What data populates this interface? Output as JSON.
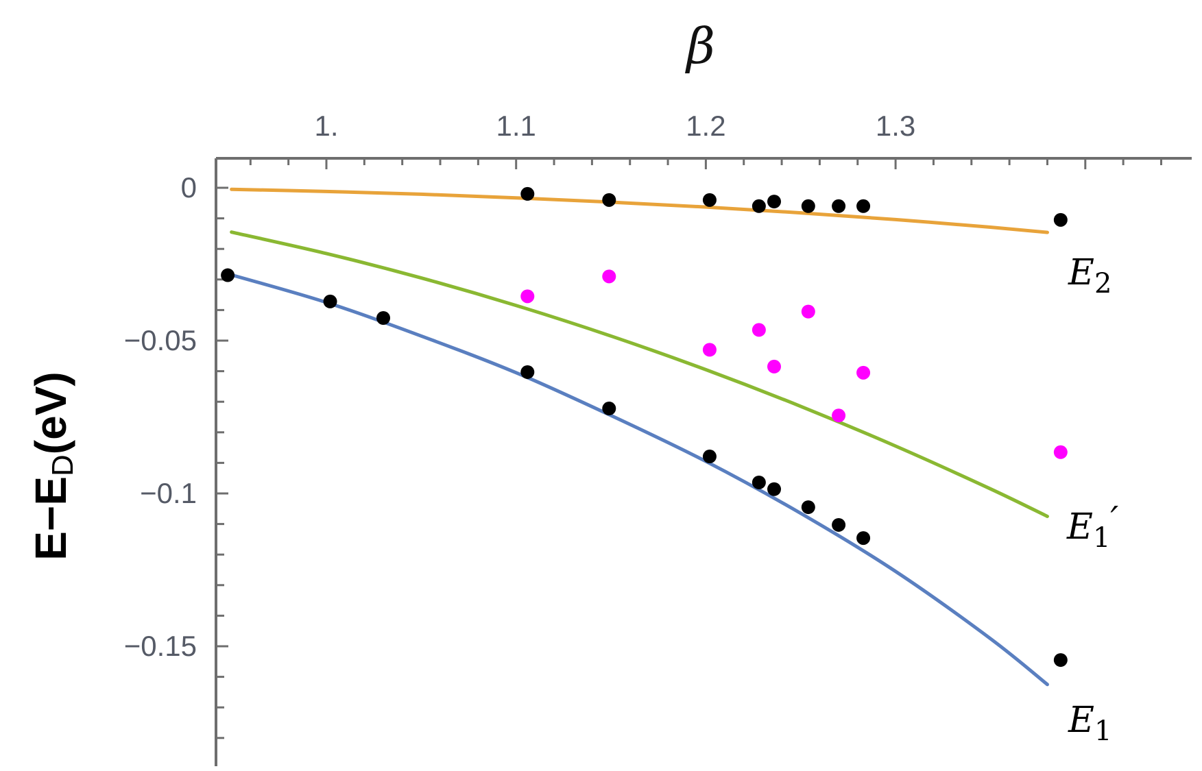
{
  "chart_data": {
    "type": "scatter",
    "title": "",
    "xlabel": "β",
    "ylabel": "E−E_D(eV)",
    "ylabel_parts": {
      "main": "E−E",
      "sub": "D",
      "suffix": "(eV)"
    },
    "xlim": [
      0.94,
      1.385
    ],
    "ylim": [
      -0.184,
      0.01
    ],
    "x_axis_position": "top",
    "grid": false,
    "x_ticks": [
      1.0,
      1.1,
      1.2,
      1.3
    ],
    "x_tick_labels": [
      "1.",
      "1.1",
      "1.2",
      "1.3"
    ],
    "y_ticks": [
      0,
      -0.05,
      -0.1,
      -0.15
    ],
    "y_tick_labels": [
      "0",
      "−0.05",
      "−0.1",
      "−0.15"
    ],
    "series": [
      {
        "name": "E2",
        "label": "E",
        "label_sub": "2",
        "kind": "fit_line",
        "color": "#e8a33a",
        "x": [
          0.95,
          1.0,
          1.05,
          1.1,
          1.15,
          1.2,
          1.25,
          1.3,
          1.35,
          1.38
        ],
        "y": [
          -0.0005,
          -0.0012,
          -0.0021,
          -0.0033,
          -0.0047,
          -0.0063,
          -0.0082,
          -0.0104,
          -0.0129,
          -0.0146
        ]
      },
      {
        "name": "E2 data",
        "kind": "points",
        "color": "#000000",
        "x": [
          1.106,
          1.149,
          1.202,
          1.228,
          1.236,
          1.254,
          1.27,
          1.283,
          1.387
        ],
        "y": [
          -0.002,
          -0.004,
          -0.004,
          -0.006,
          -0.0045,
          -0.006,
          -0.006,
          -0.006,
          -0.0105
        ]
      },
      {
        "name": "E1'",
        "label": "E",
        "label_sub": "1",
        "label_prime": "′",
        "kind": "fit_line",
        "color": "#8ab832",
        "x": [
          0.95,
          1.0,
          1.05,
          1.1,
          1.15,
          1.2,
          1.25,
          1.3,
          1.35,
          1.38
        ],
        "y": [
          -0.0145,
          -0.0215,
          -0.0295,
          -0.0385,
          -0.0485,
          -0.0595,
          -0.0715,
          -0.0845,
          -0.0985,
          -0.1075
        ]
      },
      {
        "name": "E1' data",
        "kind": "points",
        "color": "#ff00ff",
        "x": [
          1.106,
          1.149,
          1.202,
          1.228,
          1.236,
          1.254,
          1.27,
          1.283,
          1.387
        ],
        "y": [
          -0.0355,
          -0.029,
          -0.053,
          -0.0465,
          -0.0585,
          -0.0405,
          -0.0745,
          -0.0605,
          -0.0865
        ]
      },
      {
        "name": "E1",
        "label": "E",
        "label_sub": "1",
        "kind": "fit_line",
        "color": "#5a7fc0",
        "x": [
          0.95,
          1.0,
          1.05,
          1.1,
          1.15,
          1.2,
          1.25,
          1.3,
          1.35,
          1.38
        ],
        "y": [
          -0.0285,
          -0.0375,
          -0.0485,
          -0.0605,
          -0.0745,
          -0.0895,
          -0.1065,
          -0.1255,
          -0.1475,
          -0.1625
        ]
      },
      {
        "name": "E1 data",
        "kind": "points",
        "color": "#000000",
        "x": [
          0.948,
          1.002,
          1.03,
          1.106,
          1.149,
          1.202,
          1.228,
          1.236,
          1.254,
          1.27,
          1.283,
          1.387
        ],
        "y": [
          -0.0286,
          -0.0372,
          -0.0426,
          -0.0603,
          -0.0722,
          -0.0879,
          -0.0964,
          -0.0986,
          -0.1045,
          -0.1103,
          -0.1146,
          -0.1545
        ]
      }
    ],
    "annotations": [
      {
        "text": "E2",
        "near": "right end of orange curve"
      },
      {
        "text": "E1′",
        "near": "right end of green curve"
      },
      {
        "text": "E1",
        "near": "right end of blue curve"
      }
    ]
  },
  "labels": {
    "x_title": "β",
    "y_title_main": "E−E",
    "y_title_sub": "D",
    "y_title_suffix": "(eV)",
    "e2_main": "E",
    "e2_sub": "2",
    "e1p_main": "E",
    "e1p_sub": "1",
    "e1p_prime": "′",
    "e1_main": "E",
    "e1_sub": "1"
  }
}
